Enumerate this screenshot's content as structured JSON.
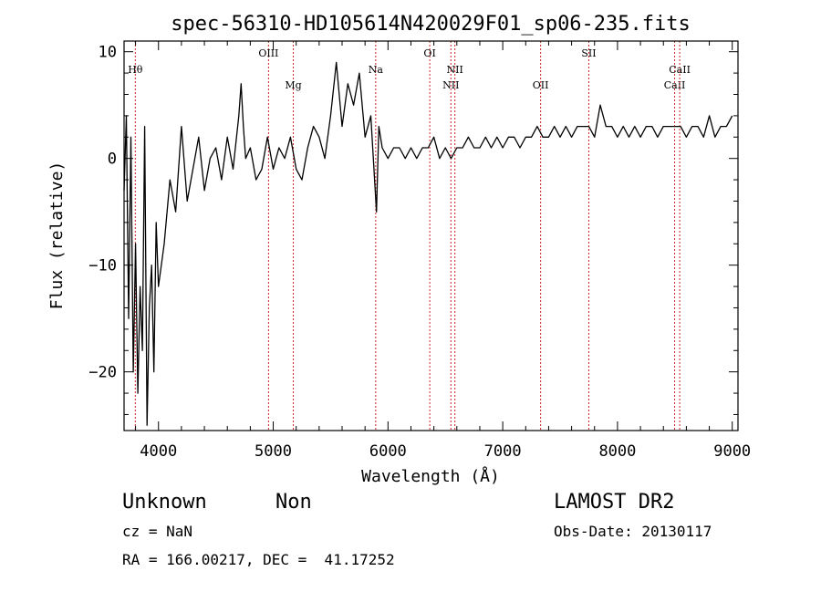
{
  "chart_data": {
    "type": "line",
    "title": "spec-56310-HD105614N420029F01_sp06-235.fits",
    "xlabel": "Wavelength (Å)",
    "ylabel": "Flux (relative)",
    "xlim": [
      3700,
      9050
    ],
    "ylim": [
      -25.5,
      11
    ],
    "xticks": [
      4000,
      5000,
      6000,
      7000,
      8000,
      9000
    ],
    "yticks": [
      -20,
      -10,
      0,
      10
    ],
    "grid": false,
    "series": [
      {
        "x": [
          3700,
          3720,
          3740,
          3760,
          3780,
          3800,
          3820,
          3840,
          3860,
          3880,
          3900,
          3920,
          3940,
          3960,
          3980,
          4000,
          4050,
          4100,
          4150,
          4200,
          4250,
          4300,
          4350,
          4400,
          4450,
          4500,
          4550,
          4600,
          4650,
          4700,
          4720,
          4740,
          4760,
          4800,
          4850,
          4900,
          4950,
          5000,
          5050,
          5100,
          5150,
          5200,
          5250,
          5300,
          5350,
          5400,
          5450,
          5500,
          5550,
          5600,
          5650,
          5700,
          5750,
          5800,
          5850,
          5900,
          5920,
          5950,
          6000,
          6050,
          6100,
          6150,
          6200,
          6250,
          6300,
          6350,
          6400,
          6450,
          6500,
          6550,
          6600,
          6650,
          6700,
          6750,
          6800,
          6850,
          6900,
          6950,
          7000,
          7050,
          7100,
          7150,
          7200,
          7250,
          7300,
          7350,
          7400,
          7450,
          7500,
          7550,
          7600,
          7650,
          7700,
          7750,
          7800,
          7850,
          7900,
          7950,
          8000,
          8050,
          8100,
          8150,
          8200,
          8250,
          8300,
          8350,
          8400,
          8450,
          8500,
          8550,
          8600,
          8650,
          8700,
          8750,
          8800,
          8850,
          8900,
          8950,
          9000
        ],
        "values": [
          -3,
          4,
          -15,
          2,
          -20,
          -8,
          -22,
          -12,
          -18,
          3,
          -25,
          -14,
          -10,
          -20,
          -6,
          -12,
          -8,
          -2,
          -5,
          3,
          -4,
          -1,
          2,
          -3,
          0,
          1,
          -2,
          2,
          -1,
          4,
          7,
          3,
          0,
          1,
          -2,
          -1,
          2,
          -1,
          1,
          0,
          2,
          -1,
          -2,
          1,
          3,
          2,
          0,
          4,
          9,
          3,
          7,
          5,
          8,
          2,
          4,
          -5,
          3,
          1,
          0,
          1,
          1,
          0,
          1,
          0,
          1,
          1,
          2,
          0,
          1,
          0,
          1,
          1,
          2,
          1,
          1,
          2,
          1,
          2,
          1,
          2,
          2,
          1,
          2,
          2,
          3,
          2,
          2,
          3,
          2,
          3,
          2,
          3,
          3,
          3,
          2,
          5,
          3,
          3,
          2,
          3,
          2,
          3,
          2,
          3,
          3,
          2,
          3,
          3,
          3,
          3,
          2,
          3,
          3,
          2,
          4,
          2,
          3,
          3,
          4
        ]
      }
    ],
    "lines": [
      {
        "label": "Hθ",
        "x": 3798,
        "row": 1
      },
      {
        "label": "OIII",
        "x": 4959,
        "row": 0
      },
      {
        "label": "Mg",
        "x": 5175,
        "row": 2
      },
      {
        "label": "Na",
        "x": 5893,
        "row": 1
      },
      {
        "label": "OI",
        "x": 6364,
        "row": 0
      },
      {
        "label": "NII",
        "x": 6548,
        "row": 2
      },
      {
        "label": "NII",
        "x": 6583,
        "row": 1
      },
      {
        "label": "OII",
        "x": 7330,
        "row": 2
      },
      {
        "label": "SII",
        "x": 7750,
        "row": 0
      },
      {
        "label": "CaII",
        "x": 8498,
        "row": 2
      },
      {
        "label": "CaII",
        "x": 8542,
        "row": 1
      }
    ]
  },
  "info": {
    "class_name": "Unknown",
    "subclass": "Non",
    "survey": "LAMOST DR2",
    "cz": "cz = NaN",
    "obs_date": "Obs-Date: 20130117",
    "coords": "RA = 166.00217, DEC =  41.17252"
  }
}
